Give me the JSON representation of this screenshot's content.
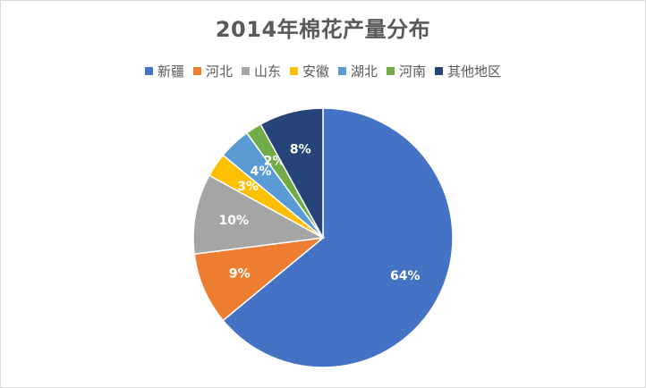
{
  "chart_data": {
    "type": "pie",
    "title": "2014年棉花产量分布",
    "legend_position": "top",
    "categories": [
      "新疆",
      "河北",
      "山东",
      "安徽",
      "湖北",
      "河南",
      "其他地区"
    ],
    "values": [
      64,
      9,
      10,
      3,
      4,
      2,
      8
    ],
    "labels": [
      "64%",
      "9%",
      "10%",
      "3%",
      "4%",
      "2%",
      "8%"
    ],
    "colors": [
      "#4472c4",
      "#ed7d31",
      "#a5a5a5",
      "#ffc000",
      "#5b9bd5",
      "#70ad47",
      "#264478"
    ]
  }
}
